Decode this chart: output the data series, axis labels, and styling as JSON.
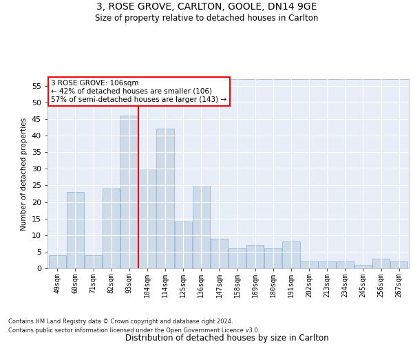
{
  "title1": "3, ROSE GROVE, CARLTON, GOOLE, DN14 9GE",
  "title2": "Size of property relative to detached houses in Carlton",
  "xlabel": "Distribution of detached houses by size in Carlton",
  "ylabel": "Number of detached properties",
  "categories": [
    "49sqm",
    "60sqm",
    "71sqm",
    "82sqm",
    "93sqm",
    "104sqm",
    "114sqm",
    "125sqm",
    "136sqm",
    "147sqm",
    "158sqm",
    "169sqm",
    "180sqm",
    "191sqm",
    "202sqm",
    "213sqm",
    "234sqm",
    "245sqm",
    "256sqm",
    "267sqm"
  ],
  "values": [
    4,
    23,
    4,
    24,
    46,
    30,
    42,
    14,
    25,
    9,
    6,
    7,
    6,
    8,
    2,
    2,
    2,
    1,
    3,
    2
  ],
  "bar_color": "#ccdaea",
  "bar_edge_color": "#92b8d8",
  "red_line_after_index": 5,
  "ylim": [
    0,
    57
  ],
  "yticks": [
    0,
    5,
    10,
    15,
    20,
    25,
    30,
    35,
    40,
    45,
    50,
    55
  ],
  "annotation_line1": "3 ROSE GROVE: 106sqm",
  "annotation_line2": "← 42% of detached houses are smaller (106)",
  "annotation_line3": "57% of semi-detached houses are larger (143) →",
  "footer1": "Contains HM Land Registry data © Crown copyright and database right 2024.",
  "footer2": "Contains public sector information licensed under the Open Government Licence v3.0.",
  "bg_color": "#e8eef8"
}
